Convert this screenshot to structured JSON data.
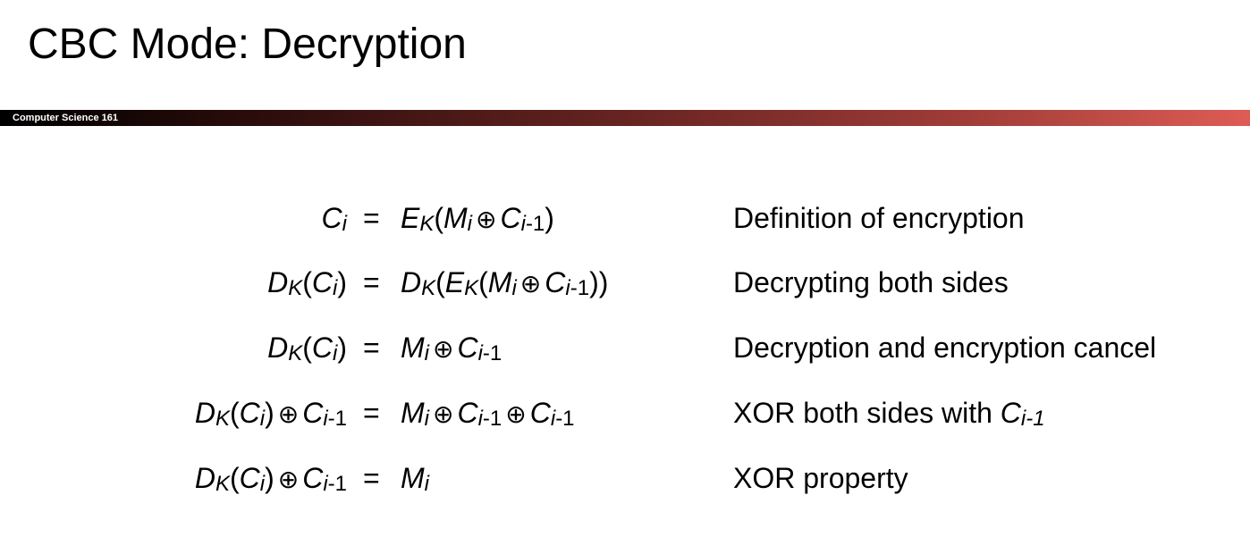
{
  "slide": {
    "title": "CBC Mode: Decryption",
    "course_label": "Computer Science 161"
  },
  "derivation": [
    {
      "lhs": [
        {
          "t": "C",
          "s": "var"
        },
        {
          "t": "i",
          "s": "sub"
        }
      ],
      "eq": "=",
      "rhs": [
        {
          "t": "E",
          "s": "var"
        },
        {
          "t": "K",
          "s": "sub"
        },
        {
          "t": "(",
          "s": "txt"
        },
        {
          "t": "M",
          "s": "var"
        },
        {
          "t": "i",
          "s": "sub"
        },
        {
          "t": "⊕",
          "s": "op"
        },
        {
          "t": "C",
          "s": "var"
        },
        {
          "t": "i",
          "s": "sub"
        },
        {
          "t": "-1",
          "s": "subn"
        },
        {
          "t": ")",
          "s": "txt"
        }
      ],
      "description": [
        {
          "t": "Definition of encryption",
          "s": "txt"
        }
      ]
    },
    {
      "lhs": [
        {
          "t": "D",
          "s": "var"
        },
        {
          "t": "K",
          "s": "sub"
        },
        {
          "t": "(",
          "s": "txt"
        },
        {
          "t": "C",
          "s": "var"
        },
        {
          "t": "i",
          "s": "sub"
        },
        {
          "t": ")",
          "s": "txt"
        }
      ],
      "eq": "=",
      "rhs": [
        {
          "t": "D",
          "s": "var"
        },
        {
          "t": "K",
          "s": "sub"
        },
        {
          "t": "(",
          "s": "txt"
        },
        {
          "t": "E",
          "s": "var"
        },
        {
          "t": "K",
          "s": "sub"
        },
        {
          "t": "(",
          "s": "txt"
        },
        {
          "t": "M",
          "s": "var"
        },
        {
          "t": "i",
          "s": "sub"
        },
        {
          "t": "⊕",
          "s": "op"
        },
        {
          "t": "C",
          "s": "var"
        },
        {
          "t": "i",
          "s": "sub"
        },
        {
          "t": "-1",
          "s": "subn"
        },
        {
          "t": "))",
          "s": "txt"
        }
      ],
      "description": [
        {
          "t": "Decrypting both sides",
          "s": "txt"
        }
      ]
    },
    {
      "lhs": [
        {
          "t": "D",
          "s": "var"
        },
        {
          "t": "K",
          "s": "sub"
        },
        {
          "t": "(",
          "s": "txt"
        },
        {
          "t": "C",
          "s": "var"
        },
        {
          "t": "i",
          "s": "sub"
        },
        {
          "t": ")",
          "s": "txt"
        }
      ],
      "eq": "=",
      "rhs": [
        {
          "t": "M",
          "s": "var"
        },
        {
          "t": "i",
          "s": "sub"
        },
        {
          "t": "⊕",
          "s": "op"
        },
        {
          "t": "C",
          "s": "var"
        },
        {
          "t": "i",
          "s": "sub"
        },
        {
          "t": "-1",
          "s": "subn"
        }
      ],
      "description": [
        {
          "t": "Decryption and encryption cancel",
          "s": "txt"
        }
      ]
    },
    {
      "lhs": [
        {
          "t": "D",
          "s": "var"
        },
        {
          "t": "K",
          "s": "sub"
        },
        {
          "t": "(",
          "s": "txt"
        },
        {
          "t": "C",
          "s": "var"
        },
        {
          "t": "i",
          "s": "sub"
        },
        {
          "t": ")",
          "s": "txt"
        },
        {
          "t": "⊕",
          "s": "op"
        },
        {
          "t": "C",
          "s": "var"
        },
        {
          "t": "i",
          "s": "sub"
        },
        {
          "t": "-1",
          "s": "subn"
        }
      ],
      "eq": "=",
      "rhs": [
        {
          "t": "M",
          "s": "var"
        },
        {
          "t": "i",
          "s": "sub"
        },
        {
          "t": "⊕",
          "s": "op"
        },
        {
          "t": "C",
          "s": "var"
        },
        {
          "t": "i",
          "s": "sub"
        },
        {
          "t": "-1",
          "s": "subn"
        },
        {
          "t": "⊕",
          "s": "op"
        },
        {
          "t": "C",
          "s": "var"
        },
        {
          "t": "i",
          "s": "sub"
        },
        {
          "t": "-1",
          "s": "subn"
        }
      ],
      "description": [
        {
          "t": "XOR both sides with ",
          "s": "txt"
        },
        {
          "t": "C",
          "s": "var"
        },
        {
          "t": "i-1",
          "s": "sub"
        }
      ]
    },
    {
      "lhs": [
        {
          "t": "D",
          "s": "var"
        },
        {
          "t": "K",
          "s": "sub"
        },
        {
          "t": "(",
          "s": "txt"
        },
        {
          "t": "C",
          "s": "var"
        },
        {
          "t": "i",
          "s": "sub"
        },
        {
          "t": ")",
          "s": "txt"
        },
        {
          "t": "⊕",
          "s": "op"
        },
        {
          "t": "C",
          "s": "var"
        },
        {
          "t": "i",
          "s": "sub"
        },
        {
          "t": "-1",
          "s": "subn"
        }
      ],
      "eq": "=",
      "rhs": [
        {
          "t": "M",
          "s": "var"
        },
        {
          "t": "i",
          "s": "sub"
        }
      ],
      "description": [
        {
          "t": "XOR property",
          "s": "txt"
        }
      ]
    }
  ]
}
